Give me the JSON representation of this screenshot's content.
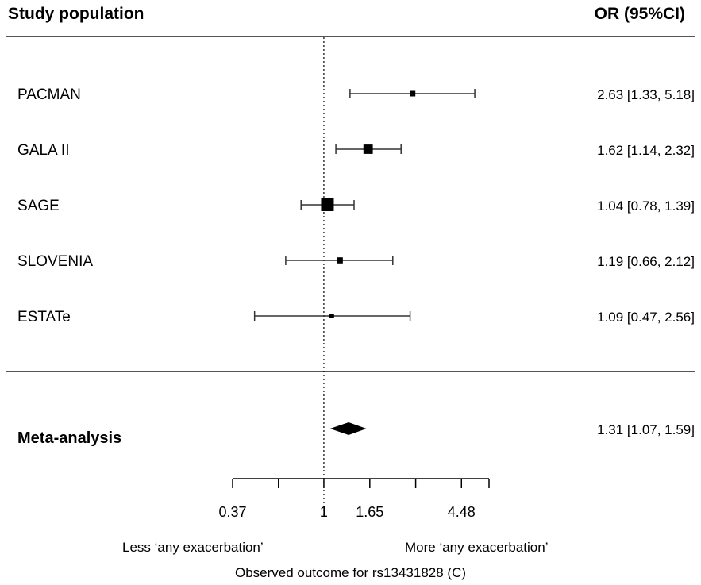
{
  "header": {
    "left_title": "Study population",
    "right_title": "OR (95%CI)"
  },
  "chart_data": {
    "type": "forest",
    "x_scale": "log",
    "xlim": [
      0.37,
      6.05
    ],
    "reference_line": 1,
    "studies": [
      {
        "label": "PACMAN",
        "or": 2.63,
        "lo": 1.33,
        "hi": 5.18,
        "ci_text": "2.63 [1.33, 5.18]",
        "weight": 0.25
      },
      {
        "label": "GALA II",
        "or": 1.62,
        "lo": 1.14,
        "hi": 2.32,
        "ci_text": "1.62 [1.14, 2.32]",
        "weight": 0.65
      },
      {
        "label": "SAGE",
        "or": 1.04,
        "lo": 0.78,
        "hi": 1.39,
        "ci_text": "1.04 [0.78, 1.39]",
        "weight": 1.0
      },
      {
        "label": "SLOVENIA",
        "or": 1.19,
        "lo": 0.66,
        "hi": 2.12,
        "ci_text": "1.19 [0.66, 2.12]",
        "weight": 0.3
      },
      {
        "label": "ESTATe",
        "or": 1.09,
        "lo": 0.47,
        "hi": 2.56,
        "ci_text": "1.09 [0.47, 2.56]",
        "weight": 0.15
      }
    ],
    "meta": {
      "label": "Meta-analysis",
      "or": 1.31,
      "lo": 1.07,
      "hi": 1.59,
      "ci_text": "1.31 [1.07, 1.59]"
    },
    "x_ticks": [
      0.37,
      0.61,
      1,
      1.65,
      2.72,
      4.48,
      6.05
    ],
    "x_tick_labels": [
      {
        "value": 0.37,
        "label": "0.37"
      },
      {
        "value": 1,
        "label": "1"
      },
      {
        "value": 1.65,
        "label": "1.65"
      },
      {
        "value": 4.48,
        "label": "4.48"
      }
    ],
    "left_direction_label": "Less ‘any exacerbation’",
    "right_direction_label": "More ‘any exacerbation’",
    "xlabel": "Observed outcome for rs13431828 (C)"
  }
}
